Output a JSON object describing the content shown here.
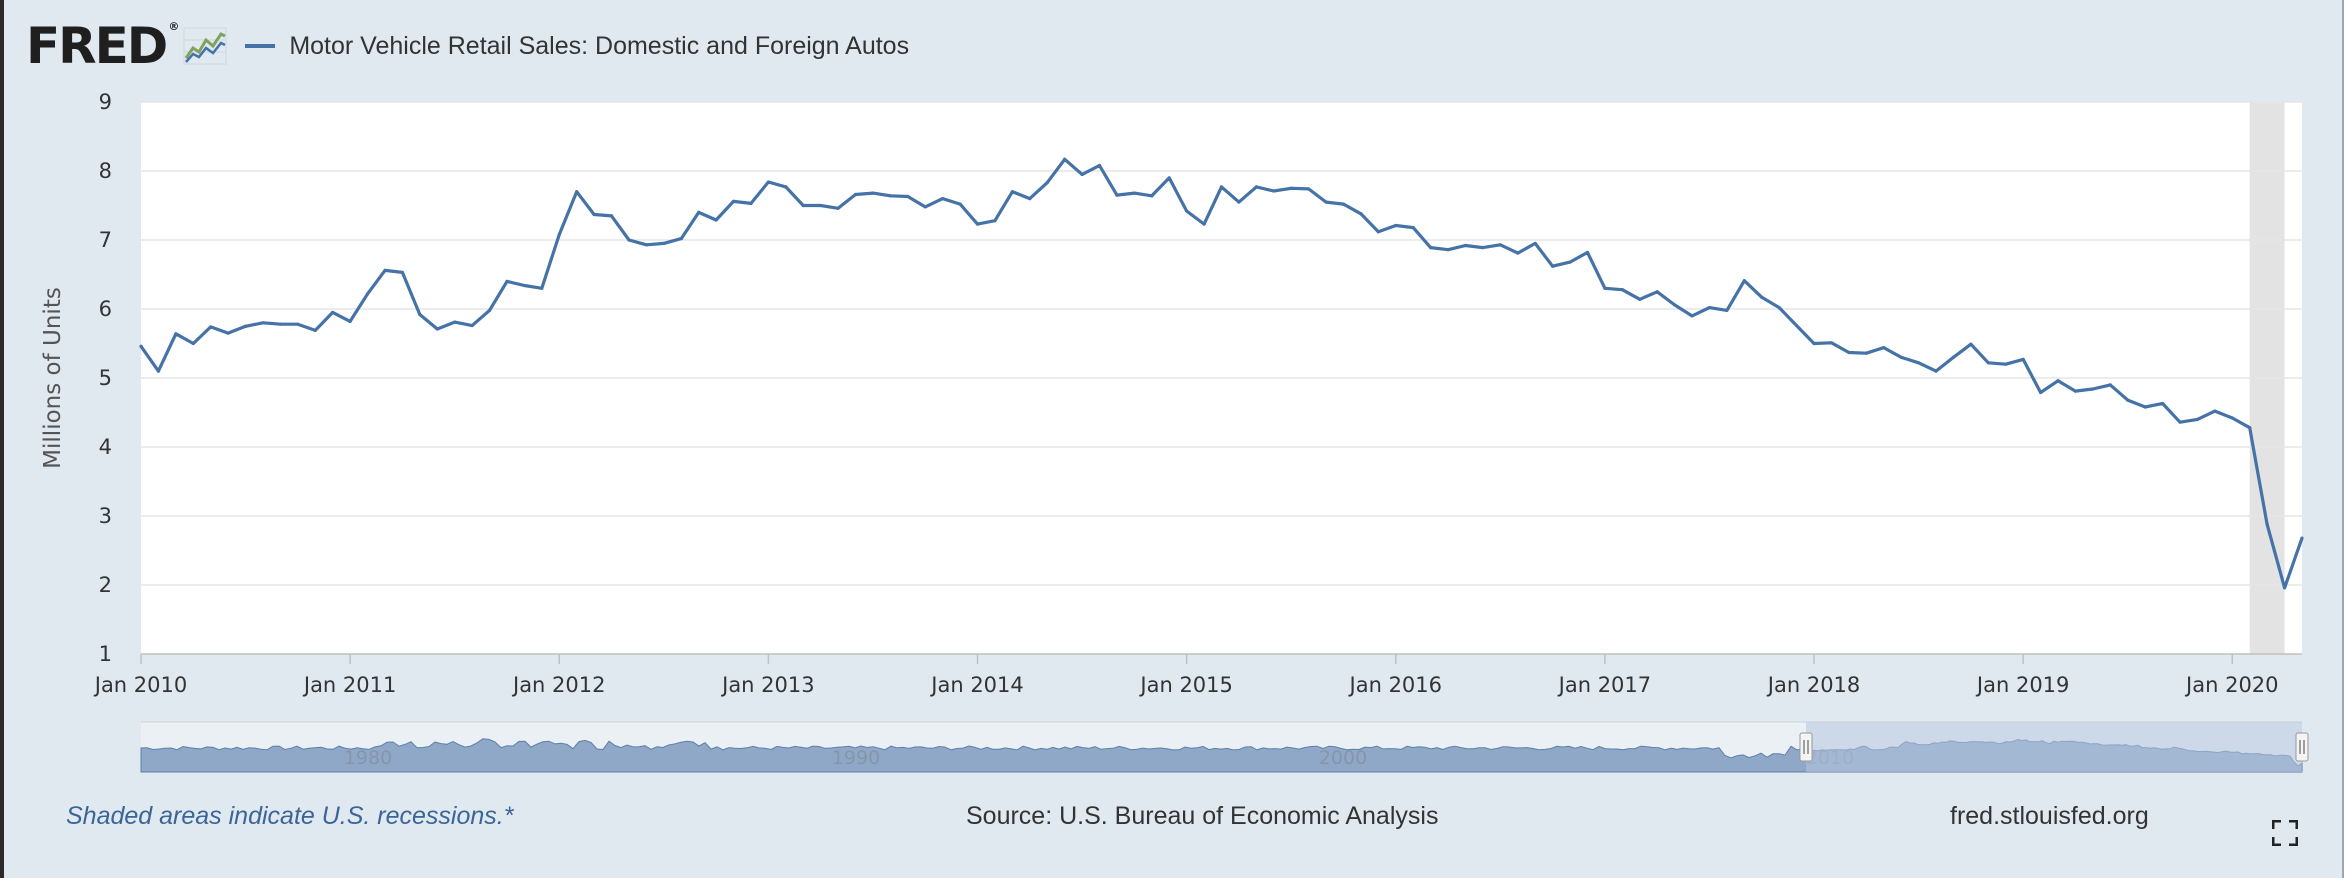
{
  "header": {
    "logo_text": "FRED",
    "logo_mark": "®",
    "logo_icon": "trend-graph-icon",
    "legend_label": "Motor Vehicle Retail Sales: Domestic and Foreign Autos"
  },
  "chart_data": {
    "type": "line",
    "title": "",
    "xlabel": "",
    "ylabel": "Millions of Units",
    "ylim": [
      1,
      9
    ],
    "yticks": [
      "1",
      "2",
      "3",
      "4",
      "5",
      "6",
      "7",
      "8",
      "9"
    ],
    "xticks": [
      "Jan 2010",
      "Jan 2011",
      "Jan 2012",
      "Jan 2013",
      "Jan 2014",
      "Jan 2015",
      "Jan 2016",
      "Jan 2017",
      "Jan 2018",
      "Jan 2019",
      "Jan 2020"
    ],
    "xlim": [
      "2010-01",
      "2020-05"
    ],
    "frequency": "monthly",
    "start": "2010-01",
    "grid": true,
    "line_color": "#4572a7",
    "series": [
      {
        "name": "Motor Vehicle Retail Sales: Domestic and Foreign Autos",
        "values": [
          5.46,
          5.1,
          5.64,
          5.5,
          5.74,
          5.65,
          5.75,
          5.8,
          5.78,
          5.78,
          5.69,
          5.95,
          5.82,
          6.22,
          6.56,
          6.53,
          5.92,
          5.71,
          5.81,
          5.76,
          5.98,
          6.4,
          6.34,
          6.3,
          7.08,
          7.7,
          7.37,
          7.35,
          7.0,
          6.93,
          6.95,
          7.02,
          7.4,
          7.29,
          7.56,
          7.53,
          7.84,
          7.77,
          7.5,
          7.5,
          7.46,
          7.66,
          7.68,
          7.64,
          7.63,
          7.48,
          7.6,
          7.52,
          7.23,
          7.28,
          7.7,
          7.6,
          7.83,
          8.17,
          7.95,
          8.08,
          7.65,
          7.68,
          7.64,
          7.9,
          7.42,
          7.23,
          7.77,
          7.55,
          7.77,
          7.71,
          7.75,
          7.74,
          7.55,
          7.52,
          7.38,
          7.12,
          7.21,
          7.18,
          6.89,
          6.86,
          6.92,
          6.89,
          6.93,
          6.81,
          6.95,
          6.62,
          6.68,
          6.82,
          6.3,
          6.28,
          6.14,
          6.25,
          6.06,
          5.9,
          6.02,
          5.98,
          6.41,
          6.17,
          6.02,
          5.76,
          5.5,
          5.51,
          5.37,
          5.36,
          5.44,
          5.3,
          5.22,
          5.1,
          5.3,
          5.49,
          5.22,
          5.2,
          5.27,
          4.79,
          4.96,
          4.81,
          4.84,
          4.9,
          4.68,
          4.58,
          4.63,
          4.36,
          4.4,
          4.52,
          4.42,
          4.28,
          2.88,
          1.96,
          2.68
        ]
      }
    ],
    "recession_shading": [
      [
        "2020-02",
        "2020-04"
      ]
    ],
    "navigator": {
      "labels": [
        "1980",
        "1990",
        "2000",
        "2010"
      ],
      "selected_range": [
        "2010-01",
        "2020-05"
      ]
    }
  },
  "footer": {
    "note": "Shaded areas indicate U.S. recessions.*",
    "source": "Source: U.S. Bureau of Economic Analysis",
    "site": "fred.stlouisfed.org",
    "fullscreen_icon": "fullscreen-icon"
  },
  "colors": {
    "background": "#e1e9f0",
    "plot_background": "#ffffff",
    "series_line": "#4572a7",
    "recession_band": "#e3e3e3",
    "navigator_fill": "#8fa8c8",
    "navigator_mask": "#b4c5dc",
    "note_text": "#3a6596"
  }
}
